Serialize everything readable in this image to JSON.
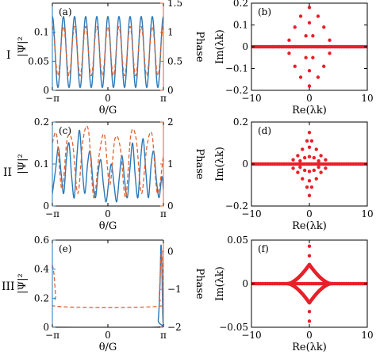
{
  "figure": {
    "row_labels": [
      "I",
      "II",
      "III"
    ],
    "colors": {
      "blue": "#2a78b8",
      "orange": "#e0622f",
      "red": "#e8202a",
      "axis": "#000000"
    }
  },
  "chart_data": [
    {
      "id": "a",
      "type": "line",
      "panel_label": "(a)",
      "xlabel": "θ/G",
      "ylabel": "|Ψ|²",
      "y2label": "Phase",
      "xlim": [
        -3.1416,
        3.1416
      ],
      "xticks": [
        "−π",
        "0",
        "π"
      ],
      "ylim": [
        0,
        0.15
      ],
      "yticks": [
        "0",
        "0.05",
        "0.1"
      ],
      "y2lim": [
        0,
        1.5
      ],
      "y2ticks": [
        "0",
        "0.5",
        "1",
        "1.5"
      ],
      "series": [
        {
          "axis": "left",
          "color": "#2a78b8",
          "style": "solid",
          "form": "cos2",
          "periods": 10,
          "min": 0.005,
          "max": 0.127
        },
        {
          "axis": "right",
          "color": "#e0622f",
          "style": "dashed",
          "form": "cos2",
          "periods": 10,
          "min": 0.25,
          "max": 1.1
        }
      ]
    },
    {
      "id": "b",
      "type": "scatter",
      "panel_label": "(b)",
      "xlabel": "Re(λk)",
      "ylabel": "Im(λk)",
      "xlim": [
        -10,
        10
      ],
      "xticks": [
        "−10",
        "0",
        "10"
      ],
      "ylim": [
        -0.2,
        0.2
      ],
      "yticks": [
        "−0.2",
        "−0.1",
        "0",
        "0.1",
        "0.2"
      ],
      "points": [
        [
          0,
          0.18
        ],
        [
          -1.5,
          0.14
        ],
        [
          1.5,
          0.14
        ],
        [
          0,
          0.11
        ],
        [
          -2.5,
          0.09
        ],
        [
          2.5,
          0.09
        ],
        [
          -0.6,
          0.05
        ],
        [
          0.6,
          0.05
        ],
        [
          -3.5,
          0.03
        ],
        [
          3.5,
          0.03
        ],
        [
          0,
          -0.18
        ],
        [
          -1.5,
          -0.14
        ],
        [
          1.5,
          -0.14
        ],
        [
          0,
          -0.11
        ],
        [
          -2.5,
          -0.09
        ],
        [
          2.5,
          -0.09
        ],
        [
          -0.6,
          -0.05
        ],
        [
          0.6,
          -0.05
        ],
        [
          -3.5,
          -0.03
        ],
        [
          3.5,
          -0.03
        ]
      ],
      "band": {
        "from": -10,
        "to": 10,
        "y": 0
      }
    },
    {
      "id": "c",
      "type": "line",
      "panel_label": "(c)",
      "xlabel": "θ/G",
      "ylabel": "|Ψ|²",
      "y2label": "Phase",
      "xlim": [
        -3.1416,
        3.1416
      ],
      "xticks": [
        "−π",
        "0",
        "π"
      ],
      "ylim": [
        0,
        0.2
      ],
      "yticks": [
        "0",
        "0.1",
        "0.2"
      ],
      "y2lim": [
        0,
        2
      ],
      "y2ticks": [
        "0",
        "1",
        "2"
      ],
      "series": [
        {
          "axis": "left",
          "color": "#2a78b8",
          "style": "solid",
          "form": "irregular",
          "x": [
            -3.14,
            -2.95,
            -2.8,
            -2.65,
            -2.5,
            -2.35,
            -2.2,
            -2.05,
            -1.9,
            -1.75,
            -1.6,
            -1.45,
            -1.3,
            -1.15,
            -1.0,
            -0.85,
            -0.7,
            -0.55,
            -0.4,
            -0.25,
            -0.1,
            0.05,
            0.2,
            0.35,
            0.5,
            0.65,
            0.8,
            0.95,
            1.1,
            1.25,
            1.4,
            1.55,
            1.7,
            1.85,
            2.0,
            2.15,
            2.3,
            2.45,
            2.6,
            2.75,
            2.9,
            3.05,
            3.14
          ],
          "y": [
            0.03,
            0.09,
            0.14,
            0.08,
            0.03,
            0.11,
            0.15,
            0.07,
            0.02,
            0.12,
            0.18,
            0.09,
            0.03,
            0.1,
            0.13,
            0.06,
            0.02,
            0.08,
            0.11,
            0.05,
            0.01,
            0.06,
            0.1,
            0.05,
            0.01,
            0.07,
            0.12,
            0.06,
            0.02,
            0.09,
            0.15,
            0.07,
            0.02,
            0.11,
            0.16,
            0.08,
            0.02,
            0.1,
            0.13,
            0.06,
            0.02,
            0.07,
            0.04
          ]
        },
        {
          "axis": "right",
          "color": "#e0622f",
          "style": "dashed",
          "form": "irregular",
          "x": [
            -3.14,
            -2.9,
            -2.6,
            -2.3,
            -2.0,
            -1.7,
            -1.4,
            -1.1,
            -0.8,
            -0.5,
            -0.2,
            0.1,
            0.4,
            0.7,
            1.0,
            1.3,
            1.6,
            1.9,
            2.2,
            2.5,
            2.8,
            3.14
          ],
          "y": [
            1.5,
            1.7,
            0.4,
            1.6,
            1.5,
            0.3,
            1.6,
            1.8,
            0.2,
            1.2,
            1.7,
            0.5,
            1.6,
            1.4,
            0.2,
            1.7,
            1.6,
            0.3,
            1.4,
            1.7,
            0.3,
            1.2
          ]
        }
      ]
    },
    {
      "id": "d",
      "type": "scatter",
      "panel_label": "(d)",
      "xlabel": "Re(λk)",
      "ylabel": "Im(λk)",
      "xlim": [
        -10,
        10
      ],
      "xticks": [
        "−10",
        "0",
        "10"
      ],
      "ylim": [
        -0.2,
        0.2
      ],
      "yticks": [
        "−0.2",
        "0",
        "0.2"
      ],
      "points": [
        [
          0,
          0.15
        ],
        [
          -0.4,
          0.11
        ],
        [
          0.4,
          0.11
        ],
        [
          -1.2,
          0.07
        ],
        [
          1.2,
          0.07
        ],
        [
          0,
          0.08
        ],
        [
          -2.0,
          0.04
        ],
        [
          2.0,
          0.04
        ],
        [
          -0.8,
          0.03
        ],
        [
          0.8,
          0.03
        ],
        [
          -2.8,
          0.02
        ],
        [
          2.8,
          0.02
        ],
        [
          -1.6,
          0.015
        ],
        [
          1.6,
          0.015
        ],
        [
          0,
          0.035
        ],
        [
          0,
          -0.15
        ],
        [
          -0.4,
          -0.11
        ],
        [
          0.4,
          -0.11
        ],
        [
          -1.2,
          -0.07
        ],
        [
          1.2,
          -0.07
        ],
        [
          0,
          -0.08
        ],
        [
          -2.0,
          -0.04
        ],
        [
          2.0,
          -0.04
        ],
        [
          -0.8,
          -0.03
        ],
        [
          0.8,
          -0.03
        ],
        [
          -2.8,
          -0.02
        ],
        [
          2.8,
          -0.02
        ],
        [
          -1.6,
          -0.015
        ],
        [
          1.6,
          -0.015
        ],
        [
          0,
          -0.035
        ]
      ],
      "band": {
        "from": -10,
        "to": 10,
        "y": 0
      }
    },
    {
      "id": "e",
      "type": "line",
      "panel_label": "(e)",
      "xlabel": "θ/G",
      "ylabel": "|Ψ|²",
      "y2label": "Phase",
      "xlim": [
        -3.1416,
        3.1416
      ],
      "xticks": [
        "−π",
        "0",
        "π"
      ],
      "ylim": [
        0,
        0.6
      ],
      "yticks": [
        "0",
        "0.2",
        "0.4",
        "0.6"
      ],
      "y2lim": [
        -2,
        0.3
      ],
      "y2ticks": [
        "0",
        "−1",
        "−2"
      ],
      "series": [
        {
          "axis": "left",
          "color": "#2a78b8",
          "style": "solid",
          "form": "irregular",
          "x": [
            -3.14,
            2.7,
            2.85,
            2.95,
            3.0,
            3.05,
            3.1,
            3.14
          ],
          "y": [
            0,
            0,
            0.05,
            0.3,
            0.56,
            0.45,
            0.1,
            0
          ]
        },
        {
          "axis": "right",
          "color": "#e0622f",
          "style": "dashed",
          "form": "irregular",
          "x": [
            -3.14,
            -3.05,
            -2.95,
            -2.85,
            2.8,
            2.9,
            3.0,
            3.05,
            3.1,
            3.14
          ],
          "y": [
            -0.35,
            -0.6,
            -1.2,
            -1.45,
            -1.45,
            -1.2,
            -0.2,
            0.0,
            -0.6,
            -1.7
          ]
        }
      ]
    },
    {
      "id": "f",
      "type": "scatter",
      "panel_label": "(f)",
      "xlabel": "Re(λk)",
      "ylabel": "Im(λk)",
      "xlim": [
        -10,
        10
      ],
      "xticks": [
        "−10",
        "0",
        "10"
      ],
      "ylim": [
        -0.05,
        0.05
      ],
      "yticks": [
        "−0.05",
        "0",
        "0.05"
      ],
      "points": [
        [
          0,
          0.043
        ],
        [
          0,
          -0.043
        ],
        [
          0,
          0.032
        ],
        [
          0,
          -0.032
        ]
      ],
      "loop": {
        "xmax": 3.7,
        "ymax": 0.022
      },
      "band": {
        "from": -10,
        "to": 10,
        "y": 0
      }
    }
  ]
}
